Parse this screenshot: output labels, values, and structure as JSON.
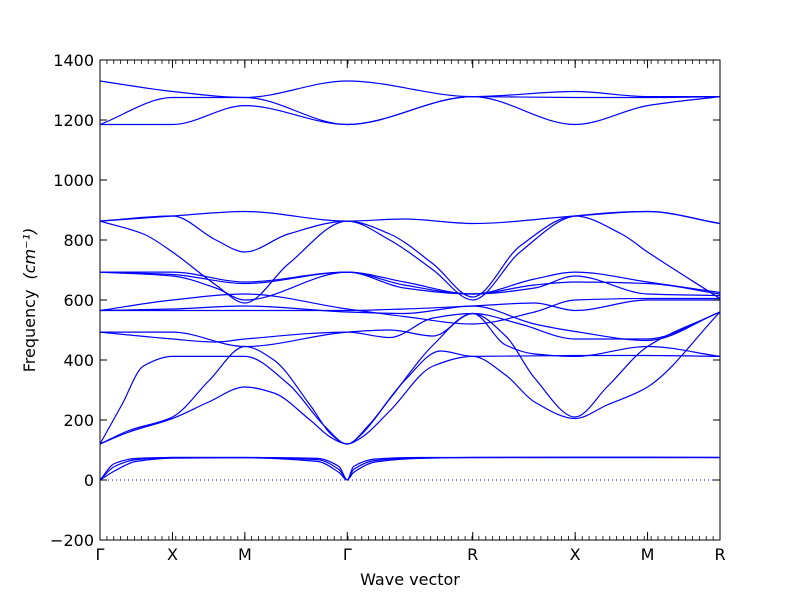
{
  "chart_data": {
    "type": "line",
    "xlabel": "Wave vector",
    "ylabel": "Frequency",
    "ylabel_unit": "(cm⁻¹)",
    "ylim": [
      -200,
      1400
    ],
    "yticks": [
      -200,
      0,
      200,
      400,
      600,
      800,
      1000,
      1200,
      1400
    ],
    "xticks": [
      {
        "label": "Γ",
        "k": 0
      },
      {
        "label": "X",
        "k": 0.5
      },
      {
        "label": "M",
        "k": 1.0
      },
      {
        "label": "Γ",
        "k": 1.707
      },
      {
        "label": "R",
        "k": 2.573
      },
      {
        "label": "X",
        "k": 3.28
      },
      {
        "label": "M",
        "k": 3.78
      },
      {
        "label": "R",
        "k": 4.28
      }
    ],
    "xlim": [
      0,
      4.28
    ],
    "line_color": "#0000ff",
    "zero_line": {
      "y": 0,
      "style": "dotted"
    },
    "grid": false,
    "bands": [
      {
        "name": "b1",
        "x": [
          0,
          0.1,
          0.25,
          0.5,
          1.0,
          1.5,
          1.65,
          1.707,
          1.75,
          1.9,
          2.2,
          2.573,
          3.28,
          3.78,
          4.28
        ],
        "y": [
          0,
          55,
          72,
          75,
          75,
          72,
          45,
          0,
          45,
          70,
          75,
          75,
          75,
          75,
          75
        ]
      },
      {
        "name": "b2",
        "x": [
          0,
          0.1,
          0.25,
          0.5,
          1.0,
          1.5,
          1.65,
          1.707,
          1.75,
          1.9,
          2.2,
          2.573,
          3.28,
          3.78,
          4.28
        ],
        "y": [
          0,
          45,
          68,
          75,
          75,
          68,
          35,
          0,
          35,
          65,
          74,
          75,
          75,
          75,
          75
        ]
      },
      {
        "name": "b3",
        "x": [
          0,
          0.1,
          0.25,
          0.5,
          1.0,
          1.5,
          1.65,
          1.707,
          1.75,
          1.9,
          2.2,
          2.573,
          3.28,
          3.78,
          4.28
        ],
        "y": [
          0,
          30,
          62,
          73,
          74,
          62,
          25,
          0,
          25,
          60,
          72,
          75,
          76,
          76,
          75
        ]
      },
      {
        "name": "b4",
        "x": [
          0,
          0.2,
          0.5,
          0.75,
          1.0,
          1.2,
          1.45,
          1.6,
          1.707,
          1.8,
          2.0,
          2.3,
          2.573,
          2.8,
          3.0,
          3.28,
          3.5,
          3.78,
          4.28
        ],
        "y": [
          120,
          160,
          205,
          260,
          310,
          290,
          200,
          140,
          120,
          140,
          230,
          380,
          412,
          350,
          260,
          205,
          250,
          310,
          560
        ]
      },
      {
        "name": "b5",
        "x": [
          0,
          0.2,
          0.5,
          0.75,
          1.0,
          1.2,
          1.45,
          1.6,
          1.707,
          1.8,
          2.0,
          2.3,
          2.573,
          2.8,
          3.0,
          3.28,
          3.5,
          3.78,
          4.28
        ],
        "y": [
          120,
          165,
          210,
          330,
          445,
          400,
          250,
          150,
          120,
          150,
          270,
          450,
          555,
          480,
          340,
          210,
          310,
          445,
          560
        ]
      },
      {
        "name": "b6",
        "x": [
          0,
          0.15,
          0.3,
          0.5,
          1.0,
          1.3,
          1.55,
          1.707,
          1.85,
          2.1,
          2.35,
          2.573,
          3.28,
          3.78,
          4.28
        ],
        "y": [
          120,
          250,
          380,
          412,
          412,
          320,
          180,
          120,
          180,
          330,
          430,
          412,
          415,
          415,
          412
        ]
      },
      {
        "name": "b7",
        "x": [
          0,
          0.5,
          1.0,
          1.707,
          2.0,
          2.3,
          2.573,
          2.8,
          3.0,
          3.28,
          3.78,
          4.28
        ],
        "y": [
          493,
          493,
          445,
          493,
          500,
          480,
          555,
          450,
          420,
          412,
          445,
          412
        ]
      },
      {
        "name": "b8",
        "x": [
          0,
          0.5,
          0.8,
          1.0,
          1.707,
          2.0,
          2.3,
          2.573,
          2.9,
          3.28,
          3.78,
          4.28
        ],
        "y": [
          493,
          470,
          460,
          470,
          493,
          475,
          540,
          555,
          520,
          470,
          470,
          560
        ]
      },
      {
        "name": "b9",
        "x": [
          0,
          0.5,
          1.0,
          1.707,
          2.1,
          2.573,
          3.0,
          3.28,
          3.78,
          4.28
        ],
        "y": [
          565,
          565,
          565,
          565,
          570,
          580,
          590,
          565,
          600,
          600
        ]
      },
      {
        "name": "b10",
        "x": [
          0,
          0.5,
          1.0,
          1.707,
          2.1,
          2.573,
          3.0,
          3.28,
          3.78,
          4.28
        ],
        "y": [
          565,
          570,
          580,
          560,
          555,
          580,
          520,
          495,
          465,
          560
        ]
      },
      {
        "name": "b11",
        "x": [
          0,
          0.5,
          1.0,
          1.707,
          2.1,
          2.573,
          3.0,
          3.28,
          3.78,
          4.28
        ],
        "y": [
          565,
          600,
          620,
          570,
          545,
          520,
          560,
          600,
          605,
          605
        ]
      },
      {
        "name": "b12",
        "x": [
          0,
          0.5,
          1.0,
          1.707,
          2.1,
          2.573,
          3.0,
          3.28,
          3.78,
          4.28
        ],
        "y": [
          693,
          693,
          660,
          693,
          640,
          620,
          670,
          693,
          660,
          625
        ]
      },
      {
        "name": "b13",
        "x": [
          0,
          0.5,
          1.0,
          1.707,
          2.1,
          2.573,
          3.0,
          3.28,
          3.78,
          4.28
        ],
        "y": [
          693,
          685,
          655,
          693,
          650,
          620,
          650,
          660,
          655,
          620
        ]
      },
      {
        "name": "b14",
        "x": [
          0,
          0.5,
          0.8,
          1.0,
          1.707,
          2.1,
          2.573,
          3.0,
          3.28,
          3.78,
          4.28
        ],
        "y": [
          693,
          680,
          640,
          600,
          693,
          660,
          620,
          640,
          680,
          620,
          615
        ]
      },
      {
        "name": "b15",
        "x": [
          0,
          0.3,
          0.5,
          0.8,
          1.0,
          1.3,
          1.707,
          2.0,
          2.3,
          2.573,
          2.9,
          3.28,
          3.6,
          3.78,
          4.28
        ],
        "y": [
          863,
          820,
          760,
          650,
          590,
          720,
          863,
          820,
          720,
          610,
          780,
          880,
          820,
          760,
          605
        ]
      },
      {
        "name": "b16",
        "x": [
          0,
          0.5,
          0.8,
          1.0,
          1.3,
          1.707,
          2.0,
          2.3,
          2.573,
          2.9,
          3.28,
          3.78,
          4.28
        ],
        "y": [
          863,
          880,
          800,
          760,
          820,
          863,
          800,
          700,
          600,
          760,
          880,
          895,
          855
        ]
      },
      {
        "name": "b17",
        "x": [
          0,
          0.5,
          1.0,
          1.707,
          2.1,
          2.573,
          3.28,
          3.78,
          4.28
        ],
        "y": [
          863,
          880,
          895,
          863,
          870,
          855,
          880,
          895,
          855
        ]
      },
      {
        "name": "b18",
        "x": [
          0,
          0.5,
          1.0,
          1.707,
          2.573,
          3.28,
          3.78,
          4.28
        ],
        "y": [
          1330,
          1295,
          1275,
          1330,
          1278,
          1295,
          1278,
          1278
        ]
      },
      {
        "name": "b19",
        "x": [
          0,
          0.5,
          1.0,
          1.707,
          2.573,
          3.28,
          3.78,
          4.28
        ],
        "y": [
          1185,
          1275,
          1275,
          1185,
          1278,
          1275,
          1275,
          1278
        ]
      },
      {
        "name": "b20",
        "x": [
          0,
          0.5,
          1.0,
          1.707,
          2.573,
          3.28,
          3.78,
          4.28
        ],
        "y": [
          1185,
          1185,
          1248,
          1185,
          1278,
          1185,
          1248,
          1278
        ]
      }
    ]
  }
}
